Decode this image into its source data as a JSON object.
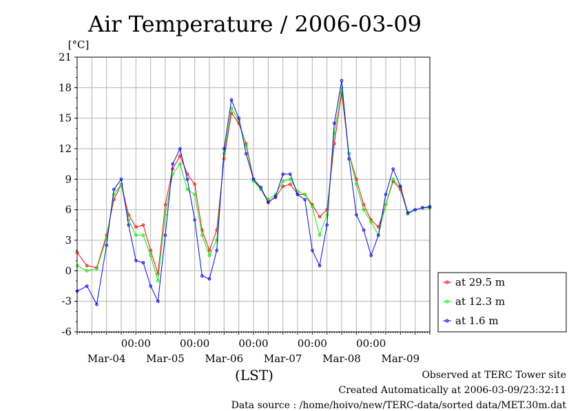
{
  "chart_data": {
    "type": "line",
    "title": "Air Temperature / 2006-03-09",
    "yunit": "[°C]",
    "xlabel": "(LST)",
    "ylim": [
      -6,
      21
    ],
    "yticks": [
      -6,
      -3,
      0,
      3,
      6,
      9,
      12,
      15,
      18,
      21
    ],
    "xlim_hours": [
      0,
      144
    ],
    "day_start_hour": 24,
    "time_tick_label": "00:00",
    "date_labels": [
      "Mar-04",
      "Mar-05",
      "Mar-06",
      "Mar-07",
      "Mar-08",
      "Mar-09"
    ],
    "grid": true,
    "legend_position": "right",
    "x_hours": [
      0,
      4,
      8,
      12,
      15,
      18,
      21,
      24,
      27,
      30,
      33,
      36,
      39,
      42,
      45,
      48,
      51,
      54,
      57,
      60,
      63,
      66,
      69,
      72,
      75,
      78,
      81,
      84,
      87,
      90,
      93,
      96,
      99,
      102,
      105,
      108,
      111,
      114,
      117,
      120,
      123,
      126,
      129,
      132,
      135,
      138,
      141,
      144
    ],
    "series": [
      {
        "name": "at 29.5 m",
        "color": "#ff0000",
        "values": [
          1.8,
          0.5,
          0.3,
          3.5,
          7.0,
          8.5,
          5.5,
          4.3,
          4.5,
          2.0,
          -0.3,
          6.5,
          10.0,
          11.3,
          9.5,
          8.5,
          4.0,
          2.0,
          4.0,
          11.0,
          15.5,
          14.5,
          12.5,
          9.0,
          8.0,
          6.8,
          7.2,
          8.3,
          8.5,
          7.5,
          7.5,
          6.5,
          5.3,
          6.0,
          12.5,
          17.5,
          11.5,
          9.0,
          6.5,
          5.0,
          4.3,
          6.5,
          8.8,
          8.0,
          5.6,
          6.0,
          6.2,
          6.2
        ]
      },
      {
        "name": "at 12.3 m",
        "color": "#00ee00",
        "values": [
          0.5,
          0.0,
          0.2,
          3.2,
          7.5,
          8.5,
          5.0,
          3.5,
          3.5,
          1.5,
          -1.0,
          5.5,
          9.5,
          10.5,
          8.0,
          7.5,
          3.5,
          1.5,
          3.0,
          11.5,
          16.0,
          14.8,
          12.3,
          8.8,
          8.0,
          7.0,
          7.5,
          8.8,
          9.0,
          7.8,
          7.5,
          6.3,
          3.5,
          5.5,
          13.5,
          18.0,
          11.5,
          8.5,
          6.0,
          4.8,
          3.5,
          6.5,
          9.0,
          8.2,
          5.6,
          6.0,
          6.2,
          6.2
        ]
      },
      {
        "name": "at 1.6 m",
        "color": "#0000ff",
        "values": [
          -2.0,
          -1.5,
          -3.3,
          2.5,
          8.0,
          9.0,
          4.5,
          1.0,
          0.8,
          -1.5,
          -3.0,
          3.5,
          10.5,
          12.0,
          9.0,
          5.0,
          -0.5,
          -0.8,
          2.0,
          12.0,
          16.8,
          15.0,
          11.5,
          9.0,
          8.2,
          6.7,
          7.3,
          9.5,
          9.5,
          7.5,
          7.0,
          2.0,
          0.5,
          4.5,
          14.5,
          18.7,
          11.0,
          5.5,
          4.0,
          1.5,
          3.5,
          7.5,
          10.0,
          8.3,
          5.7,
          6.0,
          6.2,
          6.3
        ]
      }
    ]
  },
  "footer": {
    "observed": "Observed at TERC Tower site",
    "created": "Created Automatically at 2006-03-09/23:32:11",
    "source": "Data source : /home/hoivo/new/TERC-data/sorted  data/MET.30m.dat"
  }
}
